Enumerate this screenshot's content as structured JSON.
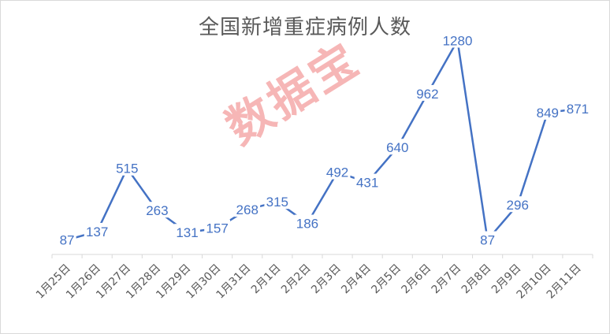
{
  "chart_data": {
    "type": "line",
    "title": "全国新增重症病例人数",
    "categories": [
      "1月25日",
      "1月26日",
      "1月27日",
      "1月28日",
      "1月29日",
      "1月30日",
      "1月31日",
      "2月1日",
      "2月2日",
      "2月3日",
      "2月4日",
      "2月5日",
      "2月6日",
      "2月7日",
      "2月8日",
      "2月9日",
      "2月10日",
      "2月11日"
    ],
    "series": [
      {
        "values": [
          87,
          137,
          515,
          263,
          131,
          157,
          268,
          315,
          186,
          492,
          431,
          640,
          962,
          1280,
          87,
          296,
          849,
          871
        ]
      }
    ],
    "ylim": [
      0,
      1400
    ],
    "grid": false,
    "legend": "none",
    "line_color": "#4472c4"
  },
  "watermark": "数据宝"
}
